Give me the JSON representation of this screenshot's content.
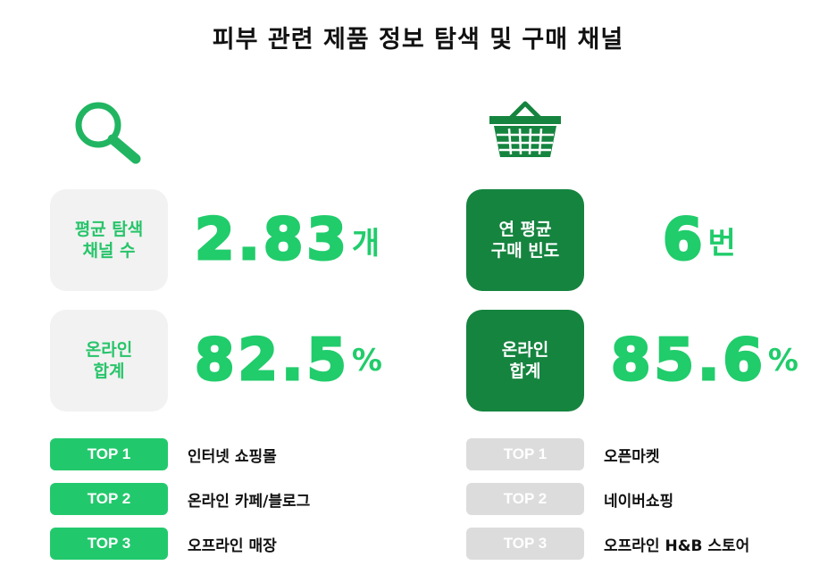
{
  "title": "피부 관련 제품 정보 탐색 및 구매 채널",
  "colors": {
    "green_bright": "#21cc6b",
    "green_dark": "#15843f",
    "light_gray": "#f2f2f2",
    "pill_gray": "#dcdcdc"
  },
  "left": {
    "icon": "magnifier-icon",
    "avg_label": "평균 탐색\n채널 수",
    "avg_value": "2.83",
    "avg_unit": "개",
    "online_label": "온라인\n합계",
    "online_value": "82.5",
    "online_unit": "%",
    "ranks": [
      {
        "badge": "TOP 1",
        "text": "인터넷 쇼핑몰"
      },
      {
        "badge": "TOP 2",
        "text": "온라인 카페/블로그"
      },
      {
        "badge": "TOP 3",
        "text": "오프라인 매장"
      }
    ]
  },
  "right": {
    "icon": "shopping-basket-icon",
    "freq_label": "연 평균\n구매 빈도",
    "freq_value": "6",
    "freq_unit": "번",
    "online_label": "온라인\n합계",
    "online_value": "85.6",
    "online_unit": "%",
    "ranks": [
      {
        "badge": "TOP 1",
        "text": "오픈마켓"
      },
      {
        "badge": "TOP 2",
        "text": "네이버쇼핑"
      },
      {
        "badge": "TOP 3",
        "text": "오프라인 H&B 스토어"
      }
    ]
  }
}
